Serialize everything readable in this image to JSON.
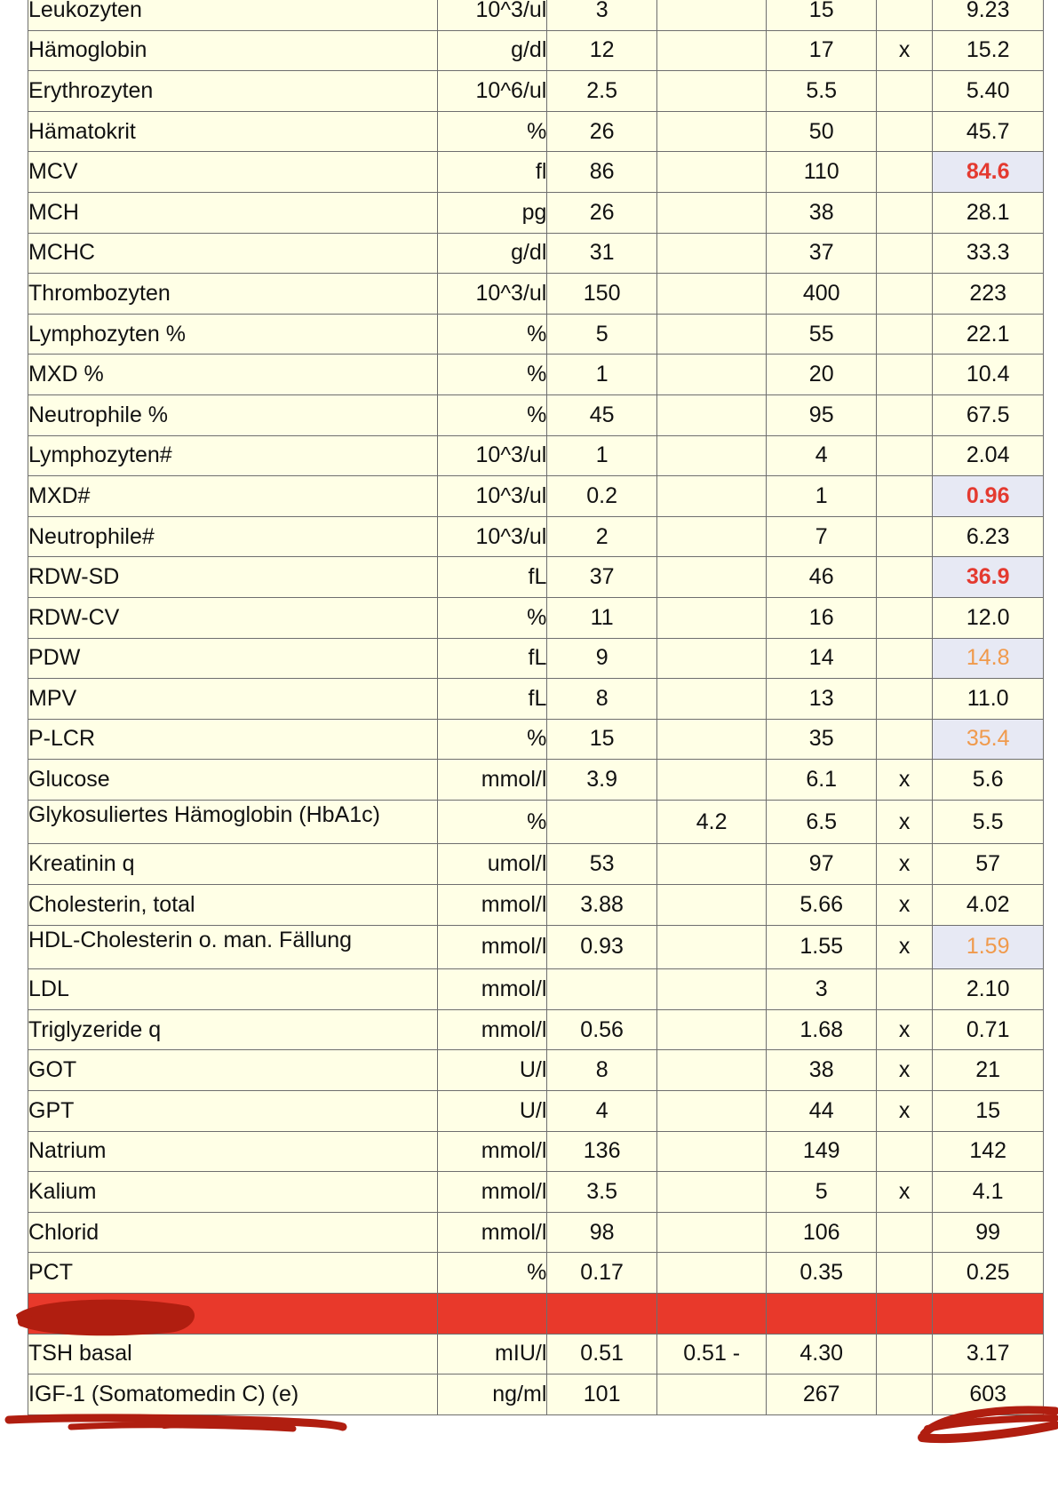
{
  "rows": [
    {
      "name": "Leukozyten",
      "unit": "10^3/ul",
      "low": "3",
      "mid": "",
      "high": "15",
      "flag": "",
      "result": "9.23",
      "status": "normal"
    },
    {
      "name": "Hämoglobin",
      "unit": "g/dl",
      "low": "12",
      "mid": "",
      "high": "17",
      "flag": "x",
      "result": "15.2",
      "status": "normal"
    },
    {
      "name": "Erythrozyten",
      "unit": "10^6/ul",
      "low": "2.5",
      "mid": "",
      "high": "5.5",
      "flag": "",
      "result": "5.40",
      "status": "normal"
    },
    {
      "name": "Hämatokrit",
      "unit": "%",
      "low": "26",
      "mid": "",
      "high": "50",
      "flag": "",
      "result": "45.7",
      "status": "normal"
    },
    {
      "name": "MCV",
      "unit": "fl",
      "low": "86",
      "mid": "",
      "high": "110",
      "flag": "",
      "result": "84.6",
      "status": "critical"
    },
    {
      "name": "MCH",
      "unit": "pg",
      "low": "26",
      "mid": "",
      "high": "38",
      "flag": "",
      "result": "28.1",
      "status": "normal"
    },
    {
      "name": "MCHC",
      "unit": "g/dl",
      "low": "31",
      "mid": "",
      "high": "37",
      "flag": "",
      "result": "33.3",
      "status": "normal"
    },
    {
      "name": "Thrombozyten",
      "unit": "10^3/ul",
      "low": "150",
      "mid": "",
      "high": "400",
      "flag": "",
      "result": "223",
      "status": "normal"
    },
    {
      "name": "Lymphozyten %",
      "unit": "%",
      "low": "5",
      "mid": "",
      "high": "55",
      "flag": "",
      "result": "22.1",
      "status": "normal"
    },
    {
      "name": "MXD %",
      "unit": "%",
      "low": "1",
      "mid": "",
      "high": "20",
      "flag": "",
      "result": "10.4",
      "status": "normal"
    },
    {
      "name": "Neutrophile %",
      "unit": "%",
      "low": "45",
      "mid": "",
      "high": "95",
      "flag": "",
      "result": "67.5",
      "status": "normal"
    },
    {
      "name": "Lymphozyten#",
      "unit": "10^3/ul",
      "low": "1",
      "mid": "",
      "high": "4",
      "flag": "",
      "result": "2.04",
      "status": "normal"
    },
    {
      "name": "MXD#",
      "unit": "10^3/ul",
      "low": "0.2",
      "mid": "",
      "high": "1",
      "flag": "",
      "result": "0.96",
      "status": "critical"
    },
    {
      "name": "Neutrophile#",
      "unit": "10^3/ul",
      "low": "2",
      "mid": "",
      "high": "7",
      "flag": "",
      "result": "6.23",
      "status": "normal"
    },
    {
      "name": "RDW-SD",
      "unit": "fL",
      "low": "37",
      "mid": "",
      "high": "46",
      "flag": "",
      "result": "36.9",
      "status": "critical"
    },
    {
      "name": "RDW-CV",
      "unit": "%",
      "low": "11",
      "mid": "",
      "high": "16",
      "flag": "",
      "result": "12.0",
      "status": "normal"
    },
    {
      "name": "PDW",
      "unit": "fL",
      "low": "9",
      "mid": "",
      "high": "14",
      "flag": "",
      "result": "14.8",
      "status": "warning"
    },
    {
      "name": "MPV",
      "unit": "fL",
      "low": "8",
      "mid": "",
      "high": "13",
      "flag": "",
      "result": "11.0",
      "status": "normal"
    },
    {
      "name": "P-LCR",
      "unit": "%",
      "low": "15",
      "mid": "",
      "high": "35",
      "flag": "",
      "result": "35.4",
      "status": "warning"
    },
    {
      "name": "Glucose",
      "unit": "mmol/l",
      "low": "3.9",
      "mid": "",
      "high": "6.1",
      "flag": "x",
      "result": "5.6",
      "status": "normal"
    },
    {
      "name": "Glykosuliertes Hämoglobin (HbA1c)",
      "unit": "%",
      "low": "",
      "mid": "4.2",
      "high": "6.5",
      "flag": "x",
      "result": "5.5",
      "status": "normal"
    },
    {
      "name": "Kreatinin q",
      "unit": "umol/l",
      "low": "53",
      "mid": "",
      "high": "97",
      "flag": "x",
      "result": "57",
      "status": "normal"
    },
    {
      "name": "Cholesterin, total",
      "unit": "mmol/l",
      "low": "3.88",
      "mid": "",
      "high": "5.66",
      "flag": "x",
      "result": "4.02",
      "status": "normal"
    },
    {
      "name": "HDL-Cholesterin o. man. Fällung",
      "unit": "mmol/l",
      "low": "0.93",
      "mid": "",
      "high": "1.55",
      "flag": "x",
      "result": "1.59",
      "status": "warning"
    },
    {
      "name": "LDL",
      "unit": "mmol/l",
      "low": "",
      "mid": "",
      "high": "3",
      "flag": "",
      "result": "2.10",
      "status": "normal"
    },
    {
      "name": "Triglyzeride q",
      "unit": "mmol/l",
      "low": "0.56",
      "mid": "",
      "high": "1.68",
      "flag": "x",
      "result": "0.71",
      "status": "normal"
    },
    {
      "name": "GOT",
      "unit": "U/l",
      "low": "8",
      "mid": "",
      "high": "38",
      "flag": "x",
      "result": "21",
      "status": "normal"
    },
    {
      "name": "GPT",
      "unit": "U/l",
      "low": "4",
      "mid": "",
      "high": "44",
      "flag": "x",
      "result": "15",
      "status": "normal"
    },
    {
      "name": "Natrium",
      "unit": "mmol/l",
      "low": "136",
      "mid": "",
      "high": "149",
      "flag": "",
      "result": "142",
      "status": "normal"
    },
    {
      "name": "Kalium",
      "unit": "mmol/l",
      "low": "3.5",
      "mid": "",
      "high": "5",
      "flag": "x",
      "result": "4.1",
      "status": "normal"
    },
    {
      "name": "Chlorid",
      "unit": "mmol/l",
      "low": "98",
      "mid": "",
      "high": "106",
      "flag": "",
      "result": "99",
      "status": "normal"
    },
    {
      "name": "PCT",
      "unit": "%",
      "low": "0.17",
      "mid": "",
      "high": "0.35",
      "flag": "",
      "result": "0.25",
      "status": "normal"
    },
    {
      "name": "",
      "unit": "",
      "low": "",
      "mid": "",
      "high": "",
      "flag": "",
      "result": "",
      "status": "redacted"
    },
    {
      "name": "TSH basal",
      "unit": "mIU/l",
      "low": "0.51",
      "mid": "0.51 -",
      "high": "4.30",
      "flag": "",
      "result": "3.17",
      "status": "normal"
    },
    {
      "name": "IGF-1 (Somatomedin C) (e)",
      "unit": "ng/ml",
      "low": "101",
      "mid": "",
      "high": "267",
      "flag": "",
      "result": "603",
      "status": "normal"
    }
  ],
  "colors": {
    "cell_background": "#ffffe6",
    "highlight_background": "#e7e9f4",
    "critical_text": "#e43a30",
    "warning_text": "#f09a4c",
    "redaction": "#e8392b",
    "scribble": "#b01e10"
  }
}
